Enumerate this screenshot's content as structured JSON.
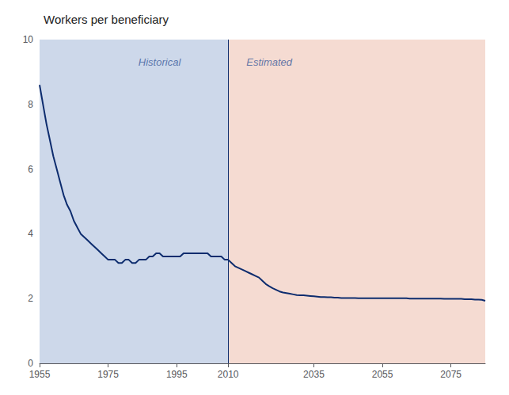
{
  "chart_data": {
    "type": "line",
    "title": "Workers per beneficiary",
    "xlim": [
      1955,
      2085
    ],
    "xticks": [
      1955,
      1975,
      1995,
      2010,
      2035,
      2055,
      2075
    ],
    "ylim": [
      0,
      10
    ],
    "yticks": [
      0,
      2,
      4,
      6,
      8,
      10
    ],
    "grid": true,
    "regions": [
      {
        "x0": 1955,
        "x1": 2010,
        "color": "#cdd8ea"
      },
      {
        "x0": 2010,
        "x1": 2085,
        "color": "#f5dbd2"
      }
    ],
    "divider": 2010,
    "annotations": [
      {
        "text": "Historical",
        "x": 1990,
        "y": 9.3
      },
      {
        "text": "Estimated",
        "x": 2022,
        "y": 9.3
      }
    ],
    "series": [
      {
        "color": "#0d2c6e",
        "x": [
          1955,
          1956,
          1957,
          1958,
          1959,
          1960,
          1961,
          1962,
          1963,
          1964,
          1965,
          1966,
          1967,
          1968,
          1969,
          1970,
          1971,
          1972,
          1973,
          1974,
          1975,
          1976,
          1977,
          1978,
          1979,
          1980,
          1981,
          1982,
          1983,
          1984,
          1985,
          1986,
          1987,
          1988,
          1989,
          1990,
          1991,
          1992,
          1993,
          1994,
          1995,
          1996,
          1997,
          1998,
          1999,
          2000,
          2001,
          2002,
          2003,
          2004,
          2005,
          2006,
          2007,
          2008,
          2009,
          2010
        ],
        "values": [
          8.6,
          8.0,
          7.4,
          6.9,
          6.4,
          6.0,
          5.6,
          5.2,
          4.9,
          4.7,
          4.4,
          4.2,
          4.0,
          3.9,
          3.8,
          3.7,
          3.6,
          3.5,
          3.4,
          3.3,
          3.2,
          3.2,
          3.2,
          3.1,
          3.1,
          3.2,
          3.2,
          3.1,
          3.1,
          3.2,
          3.2,
          3.2,
          3.3,
          3.3,
          3.4,
          3.4,
          3.3,
          3.3,
          3.3,
          3.3,
          3.3,
          3.3,
          3.4,
          3.4,
          3.4,
          3.4,
          3.4,
          3.4,
          3.4,
          3.4,
          3.3,
          3.3,
          3.3,
          3.3,
          3.2,
          3.2
        ]
      },
      {
        "color": "#0d2c6e",
        "x": [
          2010,
          2011,
          2012,
          2013,
          2014,
          2015,
          2016,
          2017,
          2018,
          2019,
          2020,
          2021,
          2022,
          2023,
          2024,
          2025,
          2026,
          2027,
          2028,
          2029,
          2030,
          2031,
          2032,
          2033,
          2034,
          2035,
          2036,
          2037,
          2038,
          2039,
          2040,
          2041,
          2042,
          2043,
          2044,
          2045,
          2046,
          2047,
          2048,
          2049,
          2050,
          2051,
          2052,
          2053,
          2054,
          2055,
          2056,
          2057,
          2058,
          2059,
          2060,
          2061,
          2062,
          2063,
          2064,
          2065,
          2066,
          2067,
          2068,
          2069,
          2070,
          2071,
          2072,
          2073,
          2074,
          2075,
          2076,
          2077,
          2078,
          2079,
          2080,
          2081,
          2082,
          2083,
          2084,
          2085
        ],
        "values": [
          3.2,
          3.1,
          3.0,
          2.95,
          2.9,
          2.85,
          2.8,
          2.75,
          2.7,
          2.65,
          2.55,
          2.45,
          2.38,
          2.32,
          2.27,
          2.22,
          2.19,
          2.17,
          2.15,
          2.13,
          2.11,
          2.1,
          2.1,
          2.09,
          2.08,
          2.07,
          2.06,
          2.05,
          2.05,
          2.04,
          2.04,
          2.03,
          2.03,
          2.02,
          2.02,
          2.02,
          2.02,
          2.02,
          2.01,
          2.01,
          2.01,
          2.01,
          2.01,
          2.01,
          2.01,
          2.01,
          2.01,
          2.01,
          2.01,
          2.01,
          2.01,
          2.01,
          2.01,
          2.0,
          2.0,
          2.0,
          2.0,
          2.0,
          2.0,
          2.0,
          2.0,
          2.0,
          2.0,
          1.99,
          1.99,
          1.99,
          1.99,
          1.99,
          1.99,
          1.98,
          1.98,
          1.98,
          1.97,
          1.97,
          1.96,
          1.93
        ]
      }
    ]
  }
}
